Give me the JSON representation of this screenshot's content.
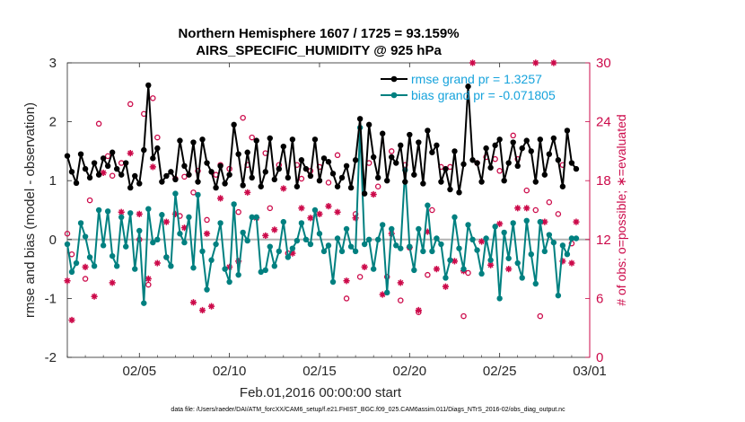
{
  "chart_data": {
    "type": "line",
    "title": "Northern Hemisphere 1607 / 1725 = 93.159%",
    "subtitle": "AIRS_SPECIFIC_HUMIDITY @ 925 hPa",
    "xlabel": "Feb.01,2016 00:00:00 start",
    "ylabel": "rmse and bias (model - observation)",
    "ylabel_right": "# of obs: o=possible; ∗=evaluated",
    "xlim": [
      1,
      30
    ],
    "ylim": [
      -2,
      3
    ],
    "ylim_right": [
      0,
      30
    ],
    "x_ticks": [
      5,
      10,
      15,
      20,
      25,
      30
    ],
    "x_tick_labels": [
      "02/05",
      "02/10",
      "02/15",
      "02/20",
      "02/25",
      "03/01"
    ],
    "y_ticks": [
      -2,
      -1,
      0,
      1,
      2,
      3
    ],
    "y_tick_labels": [
      "-2",
      "-1",
      "0",
      "1",
      "2",
      "3"
    ],
    "y_right_ticks": [
      0,
      6,
      12,
      18,
      24,
      30
    ],
    "y_right_tick_labels": [
      "0",
      "6",
      "12",
      "18",
      "24",
      "30"
    ],
    "colors": {
      "rmse": "#000000",
      "bias": "#008080",
      "obs": "#cc0a4a",
      "legend_text": "#16a3dc",
      "zero_line": "#b3b3b3"
    },
    "legend": {
      "placement": "top-right",
      "entries": [
        "rmse grand pr = 1.3257",
        "bias grand pr = -0.071805"
      ]
    },
    "series": [
      {
        "name": "rmse",
        "style": "black line with filled circles",
        "x": [
          1.0,
          1.25,
          1.5,
          1.75,
          2.0,
          2.25,
          2.5,
          2.75,
          3.0,
          3.25,
          3.5,
          3.75,
          4.0,
          4.25,
          4.5,
          4.75,
          5.0,
          5.25,
          5.5,
          5.75,
          6.0,
          6.25,
          6.5,
          6.75,
          7.0,
          7.25,
          7.5,
          7.75,
          8.0,
          8.25,
          8.5,
          8.75,
          9.0,
          9.25,
          9.5,
          9.75,
          10.0,
          10.25,
          10.5,
          10.75,
          11.0,
          11.25,
          11.5,
          11.75,
          12.0,
          12.25,
          12.5,
          12.75,
          13.0,
          13.25,
          13.5,
          13.75,
          14.0,
          14.25,
          14.5,
          14.75,
          15.0,
          15.25,
          15.5,
          15.75,
          16.0,
          16.25,
          16.5,
          16.75,
          17.0,
          17.25,
          17.5,
          17.75,
          18.0,
          18.25,
          18.5,
          18.75,
          19.0,
          19.25,
          19.5,
          19.75,
          20.0,
          20.25,
          20.5,
          20.75,
          21.0,
          21.25,
          21.5,
          21.75,
          22.0,
          22.25,
          22.5,
          22.75,
          23.0,
          23.25,
          23.5,
          23.75,
          24.0,
          24.25,
          24.5,
          24.75,
          25.0,
          25.25,
          25.5,
          25.75,
          26.0,
          26.25,
          26.5,
          26.75,
          27.0,
          27.25,
          27.5,
          27.75,
          28.0,
          28.25,
          28.5,
          28.75,
          29.0,
          29.25
        ],
        "values": [
          1.42,
          1.15,
          0.96,
          1.45,
          1.2,
          1.05,
          1.3,
          1.1,
          1.38,
          1.25,
          1.48,
          1.2,
          1.1,
          1.3,
          0.88,
          1.08,
          0.95,
          1.52,
          2.62,
          1.38,
          1.55,
          0.98,
          1.08,
          1.15,
          1.02,
          1.68,
          1.25,
          1.1,
          1.65,
          0.98,
          1.7,
          1.3,
          1.15,
          0.88,
          1.25,
          0.95,
          1.1,
          1.95,
          1.45,
          0.92,
          1.48,
          1.05,
          1.68,
          0.9,
          1.15,
          1.72,
          1.02,
          1.2,
          1.58,
          1.05,
          1.7,
          0.9,
          1.35,
          1.2,
          1.08,
          1.7,
          1.0,
          1.38,
          1.32,
          1.12,
          0.9,
          1.05,
          1.25,
          0.88,
          1.35,
          2.05,
          0.78,
          1.95,
          1.4,
          1.05,
          1.8,
          1.0,
          1.4,
          1.3,
          1.6,
          0.98,
          1.78,
          1.1,
          1.65,
          0.95,
          1.85,
          1.48,
          1.6,
          0.98,
          1.2,
          0.85,
          1.5,
          0.8,
          1.28,
          2.6,
          1.35,
          1.3,
          0.98,
          1.55,
          1.22,
          1.6,
          1.7,
          1.0,
          1.3,
          1.65,
          1.25,
          1.55,
          1.68,
          1.5,
          0.98,
          1.7,
          1.1,
          1.45,
          1.72,
          1.35,
          0.9,
          1.85,
          1.3,
          1.2
        ]
      },
      {
        "name": "bias",
        "style": "teal line with filled circles",
        "x": [
          1.0,
          1.25,
          1.5,
          1.75,
          2.0,
          2.25,
          2.5,
          2.75,
          3.0,
          3.25,
          3.5,
          3.75,
          4.0,
          4.25,
          4.5,
          4.75,
          5.0,
          5.25,
          5.5,
          5.75,
          6.0,
          6.25,
          6.5,
          6.75,
          7.0,
          7.25,
          7.5,
          7.75,
          8.0,
          8.25,
          8.5,
          8.75,
          9.0,
          9.25,
          9.5,
          9.75,
          10.0,
          10.25,
          10.5,
          10.75,
          11.0,
          11.25,
          11.5,
          11.75,
          12.0,
          12.25,
          12.5,
          12.75,
          13.0,
          13.25,
          13.5,
          13.75,
          14.0,
          14.25,
          14.5,
          14.75,
          15.0,
          15.25,
          15.5,
          15.75,
          16.0,
          16.25,
          16.5,
          16.75,
          17.0,
          17.25,
          17.5,
          17.75,
          18.0,
          18.25,
          18.5,
          18.75,
          19.0,
          19.25,
          19.5,
          19.75,
          20.0,
          20.25,
          20.5,
          20.75,
          21.0,
          21.25,
          21.5,
          21.75,
          22.0,
          22.25,
          22.5,
          22.75,
          23.0,
          23.25,
          23.5,
          23.75,
          24.0,
          24.25,
          24.5,
          24.75,
          25.0,
          25.25,
          25.5,
          25.75,
          26.0,
          26.25,
          26.5,
          26.75,
          27.0,
          27.25,
          27.5,
          27.75,
          28.0,
          28.25,
          28.5,
          28.75,
          29.0,
          29.25
        ],
        "values": [
          -0.08,
          -0.55,
          -0.4,
          0.28,
          0.05,
          -0.3,
          -0.45,
          0.5,
          -0.1,
          0.48,
          -0.28,
          -0.45,
          0.38,
          -0.12,
          0.45,
          -0.5,
          0.15,
          -1.08,
          0.52,
          -0.05,
          0.0,
          0.42,
          -0.3,
          -0.45,
          0.78,
          0.1,
          -0.05,
          0.38,
          -0.48,
          0.76,
          -0.2,
          -0.85,
          -0.35,
          -0.08,
          0.28,
          -0.5,
          -0.72,
          0.6,
          -0.6,
          0.12,
          -0.02,
          0.38,
          0.38,
          -0.55,
          -0.52,
          -0.12,
          -0.45,
          -0.2,
          0.3,
          -0.3,
          -0.15,
          -0.02,
          0.28,
          0.0,
          -0.08,
          0.5,
          0.1,
          -0.2,
          -0.1,
          -0.72,
          0.02,
          -0.2,
          0.18,
          -0.12,
          -0.2,
          1.9,
          -0.08,
          0.0,
          -0.5,
          0.0,
          0.25,
          -0.9,
          0.18,
          -0.1,
          -0.15,
          1.18,
          -0.12,
          -0.52,
          0.18,
          -0.2,
          0.58,
          -0.2,
          0.02,
          -0.08,
          -0.65,
          -0.35,
          0.38,
          -0.15,
          -0.5,
          0.25,
          0.0,
          -0.18,
          -0.58,
          0.02,
          -0.35,
          0.22,
          -1.0,
          0.12,
          -0.32,
          0.28,
          -0.4,
          -0.65,
          0.32,
          -0.25,
          -0.75,
          0.3,
          -0.2,
          0.08,
          -0.05,
          -0.95,
          -0.1,
          -0.25,
          0.02,
          0.02
        ]
      },
      {
        "name": "obs possible",
        "style": "magenta open circle markers, right axis",
        "x": [
          1.0,
          1.25,
          2.0,
          2.25,
          2.75,
          3.25,
          3.5,
          4.0,
          4.5,
          5.0,
          5.25,
          5.5,
          5.75,
          6.0,
          6.5,
          7.0,
          7.25,
          7.5,
          8.0,
          8.25,
          8.75,
          9.25,
          9.5,
          10.0,
          10.5,
          10.75,
          11.0,
          11.25,
          12.0,
          12.25,
          12.75,
          13.25,
          13.75,
          14.0,
          14.5,
          15.0,
          15.5,
          16.0,
          16.5,
          17.0,
          17.25,
          17.75,
          18.25,
          18.75,
          19.0,
          19.5,
          19.75,
          20.0,
          20.5,
          21.0,
          21.25,
          21.75,
          22.25,
          23.0,
          23.25,
          23.75,
          24.25,
          24.75,
          25.0,
          25.75,
          26.0,
          26.5,
          27.0,
          27.25,
          27.75,
          28.25,
          28.5,
          29.0
        ],
        "values": [
          12.6,
          10.5,
          8.0,
          16.0,
          23.8,
          20.5,
          18.5,
          19.8,
          25.8,
          12.0,
          24.8,
          7.4,
          26.4,
          22.4,
          10.2,
          18.2,
          14.4,
          18.4,
          16.8,
          19.0,
          14.0,
          18.6,
          19.6,
          19.2,
          14.8,
          24.4,
          19.6,
          22.4,
          20.8,
          15.2,
          19.6,
          10.6,
          19.6,
          18.2,
          19.0,
          19.4,
          17.8,
          20.6,
          6.0,
          14.6,
          8.2,
          19.8,
          17.4,
          8.2,
          21.0,
          5.8,
          19.6,
          11.2,
          4.6,
          8.4,
          15.0,
          19.4,
          19.4,
          4.2,
          8.6,
          19.8,
          20.4,
          20.2,
          19.0,
          22.6,
          20.2,
          17.0,
          15.0,
          4.2,
          15.8,
          14.6,
          19.6,
          11.6
        ],
        "_note": "counts are read approximately from the right axis"
      },
      {
        "name": "obs evaluated",
        "style": "magenta asterisk markers, right axis",
        "x": [
          1.0,
          1.25,
          2.0,
          2.5,
          3.0,
          3.5,
          4.0,
          4.5,
          5.0,
          5.5,
          5.75,
          6.0,
          6.5,
          7.0,
          7.5,
          8.0,
          8.5,
          8.75,
          9.0,
          9.5,
          10.0,
          10.5,
          11.0,
          11.5,
          12.0,
          12.5,
          13.0,
          13.5,
          14.0,
          14.5,
          15.0,
          15.5,
          16.0,
          16.5,
          17.0,
          17.5,
          18.0,
          18.5,
          19.0,
          19.5,
          20.0,
          20.5,
          21.0,
          21.5,
          22.0,
          22.5,
          23.0,
          23.5,
          24.0,
          24.5,
          25.0,
          25.5,
          26.0,
          26.5,
          27.0,
          27.5,
          28.0,
          28.5,
          29.0,
          29.25
        ],
        "values": [
          7.8,
          3.8,
          9.2,
          6.2,
          18.8,
          7.6,
          14.8,
          20.8,
          14.6,
          8.0,
          19.4,
          9.6,
          13.8,
          14.6,
          13.2,
          5.6,
          4.8,
          12.6,
          5.2,
          16.2,
          9.2,
          9.8,
          16.8,
          14.2,
          12.4,
          13.0,
          17.2,
          10.6,
          15.2,
          14.2,
          14.6,
          15.4,
          14.8,
          7.8,
          14.2,
          9.2,
          16.6,
          6.4,
          12.6,
          7.6,
          11.2,
          4.8,
          12.8,
          9.0,
          7.2,
          9.8,
          8.8,
          30.0,
          11.8,
          9.4,
          13.6,
          9.0,
          15.2,
          15.2,
          30.0,
          13.8,
          30.0,
          9.8,
          9.6,
          13.8
        ],
        "_note": "counts are read approximately from the right axis"
      }
    ]
  },
  "footnote": "data file: /Users/raeder/DAI/ATM_forcXX/CAM6_setup/f.e21.FHIST_BGC.f09_025.CAM6assim.011/Diags_NTrS_2016-02/obs_diag_output.nc"
}
